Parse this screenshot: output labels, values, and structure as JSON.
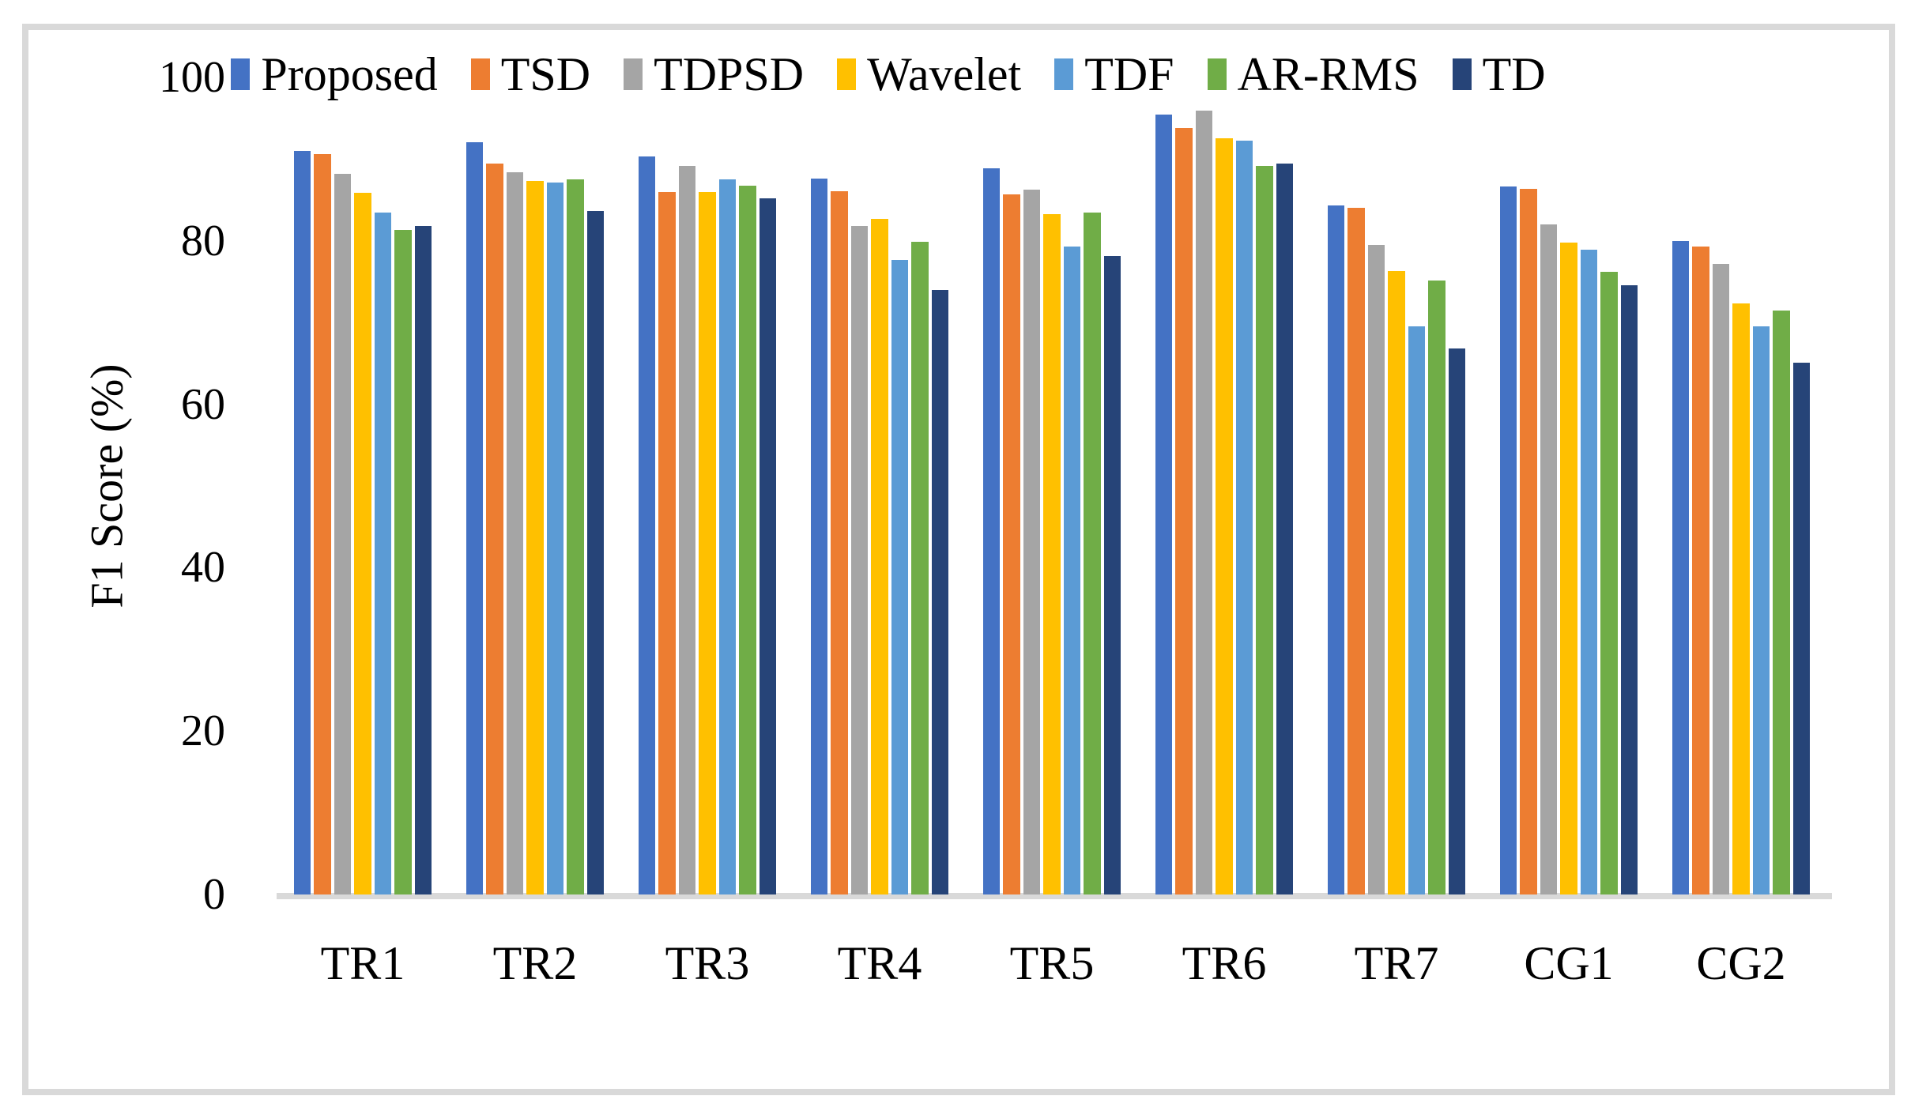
{
  "chart_data": {
    "type": "bar",
    "title": "",
    "xlabel": "",
    "ylabel": "F1 Score (%)",
    "ylim": [
      0,
      100
    ],
    "yticks": [
      0,
      20,
      40,
      60,
      80,
      100
    ],
    "grid": false,
    "legend_position": "top",
    "categories": [
      "TR1",
      "TR2",
      "TR3",
      "TR4",
      "TR5",
      "TR6",
      "TR7",
      "CG1",
      "CG2"
    ],
    "series": [
      {
        "name": "Proposed",
        "color": "#4472C4",
        "values": [
          91.0,
          92.1,
          90.3,
          87.6,
          88.9,
          95.5,
          84.3,
          86.7,
          80.0
        ]
      },
      {
        "name": "TSD",
        "color": "#ED7D31",
        "values": [
          90.6,
          89.5,
          86.0,
          86.1,
          85.7,
          93.8,
          84.0,
          86.4,
          79.3
        ]
      },
      {
        "name": "TDPSD",
        "color": "#A5A5A5",
        "values": [
          88.2,
          88.4,
          89.2,
          81.8,
          86.3,
          95.9,
          79.5,
          82.0,
          77.2
        ]
      },
      {
        "name": "Wavelet",
        "color": "#FFC000",
        "values": [
          85.9,
          87.3,
          86.0,
          82.7,
          83.3,
          92.6,
          76.3,
          79.8,
          72.3
        ]
      },
      {
        "name": "TDF",
        "color": "#5B9BD5",
        "values": [
          83.5,
          87.1,
          87.5,
          77.7,
          79.3,
          92.3,
          69.5,
          78.9,
          69.5
        ]
      },
      {
        "name": "AR-RMS",
        "color": "#70AD47",
        "values": [
          81.3,
          87.5,
          86.8,
          79.9,
          83.5,
          89.2,
          75.1,
          76.2,
          71.5
        ]
      },
      {
        "name": "TD",
        "color": "#264478",
        "values": [
          81.8,
          83.7,
          85.2,
          74.0,
          78.1,
          89.5,
          66.8,
          74.6,
          65.1
        ]
      }
    ]
  },
  "colors": {
    "frame": "#D9D9D9",
    "axis_line": "#D9D9D9",
    "text": "#000000",
    "background": "#FFFFFF"
  }
}
